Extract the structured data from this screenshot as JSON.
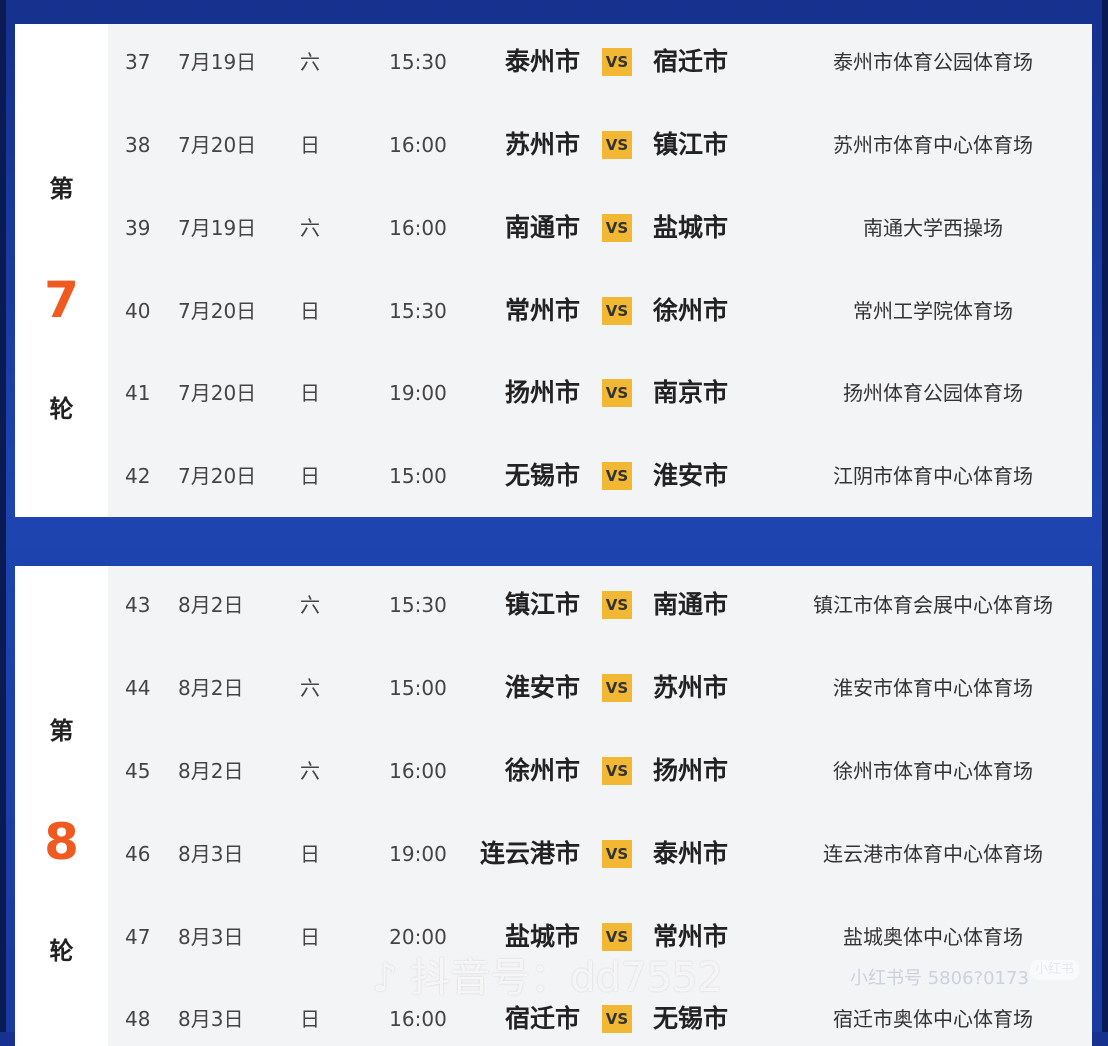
{
  "rounds": [
    {
      "prefix": "第",
      "number": "7",
      "suffix": "轮",
      "matches": [
        {
          "no": "37",
          "date": "7月19日",
          "weekday": "六",
          "time": "15:30",
          "home": "泰州市",
          "vs": "VS",
          "away": "宿迁市",
          "venue": "泰州市体育公园体育场"
        },
        {
          "no": "38",
          "date": "7月20日",
          "weekday": "日",
          "time": "16:00",
          "home": "苏州市",
          "vs": "VS",
          "away": "镇江市",
          "venue": "苏州市体育中心体育场"
        },
        {
          "no": "39",
          "date": "7月19日",
          "weekday": "六",
          "time": "16:00",
          "home": "南通市",
          "vs": "VS",
          "away": "盐城市",
          "venue": "南通大学西操场"
        },
        {
          "no": "40",
          "date": "7月20日",
          "weekday": "日",
          "time": "15:30",
          "home": "常州市",
          "vs": "VS",
          "away": "徐州市",
          "venue": "常州工学院体育场"
        },
        {
          "no": "41",
          "date": "7月20日",
          "weekday": "日",
          "time": "19:00",
          "home": "扬州市",
          "vs": "VS",
          "away": "南京市",
          "venue": "扬州体育公园体育场"
        },
        {
          "no": "42",
          "date": "7月20日",
          "weekday": "日",
          "time": "15:00",
          "home": "无锡市",
          "vs": "VS",
          "away": "淮安市",
          "venue": "江阴市体育中心体育场"
        }
      ]
    },
    {
      "prefix": "第",
      "number": "8",
      "suffix": "轮",
      "matches": [
        {
          "no": "43",
          "date": "8月2日",
          "weekday": "六",
          "time": "15:30",
          "home": "镇江市",
          "vs": "VS",
          "away": "南通市",
          "venue": "镇江市体育会展中心体育场"
        },
        {
          "no": "44",
          "date": "8月2日",
          "weekday": "六",
          "time": "15:00",
          "home": "淮安市",
          "vs": "VS",
          "away": "苏州市",
          "venue": "淮安市体育中心体育场"
        },
        {
          "no": "45",
          "date": "8月2日",
          "weekday": "六",
          "time": "16:00",
          "home": "徐州市",
          "vs": "VS",
          "away": "扬州市",
          "venue": "徐州市体育中心体育场"
        },
        {
          "no": "46",
          "date": "8月3日",
          "weekday": "日",
          "time": "19:00",
          "home": "连云港市",
          "vs": "VS",
          "away": "泰州市",
          "venue": "连云港市体育中心体育场"
        },
        {
          "no": "47",
          "date": "8月3日",
          "weekday": "日",
          "time": "20:00",
          "home": "盐城市",
          "vs": "VS",
          "away": "常州市",
          "venue": "盐城奥体中心体育场"
        },
        {
          "no": "48",
          "date": "8月3日",
          "weekday": "日",
          "time": "16:00",
          "home": "宿迁市",
          "vs": "VS",
          "away": "无锡市",
          "venue": "宿迁市奥体中心体育场"
        }
      ]
    }
  ],
  "watermarks": {
    "douyin": "♪ 抖音号：dd7552",
    "xhs_id": "小红书号 5806?0173",
    "xhs_logo": "小红书"
  },
  "colors": {
    "background": "#1d44b0",
    "vs_badge": "#f2b733",
    "round_number": "#ee5a1f"
  }
}
